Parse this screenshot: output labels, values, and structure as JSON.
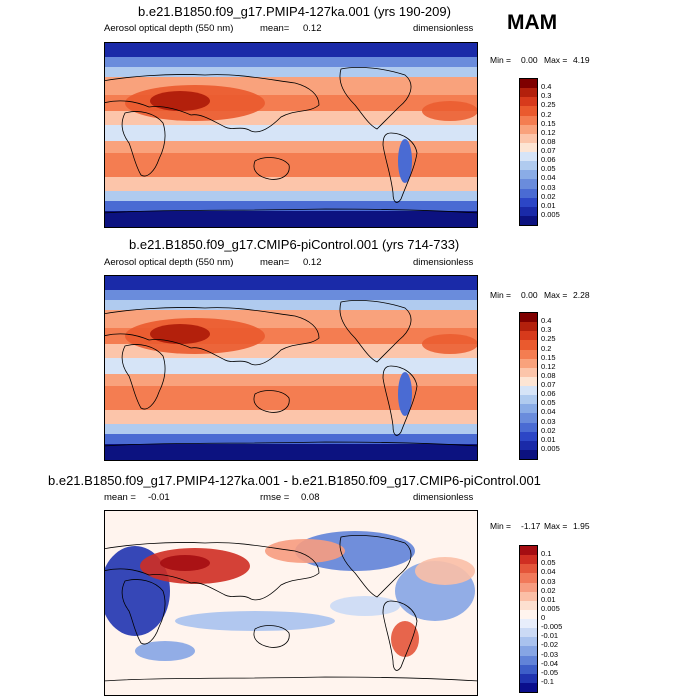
{
  "season": "MAM",
  "chart_data": [
    {
      "type": "heatmap",
      "title": "b.e21.B1850.f09_g17.PMIP4-127ka.001 (yrs 190-209)",
      "variable": "Aerosol optical depth (550 nm)",
      "mean_label": "mean=",
      "mean": "0.12",
      "units": "dimensionless",
      "min_label": "Min =",
      "min": "0.00",
      "max_label": "Max =",
      "max": "4.19",
      "levels": [
        "0.4",
        "0.3",
        "0.25",
        "0.2",
        "0.15",
        "0.12",
        "0.08",
        "0.07",
        "0.06",
        "0.05",
        "0.04",
        "0.03",
        "0.02",
        "0.01",
        "0.005"
      ],
      "colors": [
        "#7f0000",
        "#b3200c",
        "#d73a1c",
        "#ea5a2e",
        "#f47d51",
        "#f9a27c",
        "#fcc5aa",
        "#fde5d4",
        "#d6e4f7",
        "#b0cbef",
        "#8aace6",
        "#6a8cdc",
        "#4a6bd3",
        "#2c46c6",
        "#1a2aa8",
        "#0c1280"
      ]
    },
    {
      "type": "heatmap",
      "title": "b.e21.B1850.f09_g17.CMIP6-piControl.001 (yrs 714-733)",
      "variable": "Aerosol optical depth (550 nm)",
      "mean_label": "mean=",
      "mean": "0.12",
      "units": "dimensionless",
      "min_label": "Min =",
      "min": "0.00",
      "max_label": "Max =",
      "max": "2.28",
      "levels": [
        "0.4",
        "0.3",
        "0.25",
        "0.2",
        "0.15",
        "0.12",
        "0.08",
        "0.07",
        "0.06",
        "0.05",
        "0.04",
        "0.03",
        "0.02",
        "0.01",
        "0.005"
      ],
      "colors": [
        "#7f0000",
        "#b3200c",
        "#d73a1c",
        "#ea5a2e",
        "#f47d51",
        "#f9a27c",
        "#fcc5aa",
        "#fde5d4",
        "#d6e4f7",
        "#b0cbef",
        "#8aace6",
        "#6a8cdc",
        "#4a6bd3",
        "#2c46c6",
        "#1a2aa8",
        "#0c1280"
      ]
    },
    {
      "type": "heatmap",
      "title": "b.e21.B1850.f09_g17.PMIP4-127ka.001 - b.e21.B1850.f09_g17.CMIP6-piControl.001",
      "mean_label": "mean =",
      "mean": "-0.01",
      "rmse_label": "rmse =",
      "rmse": "0.08",
      "units": "dimensionless",
      "min_label": "Min =",
      "min": "-1.17",
      "max_label": "Max =",
      "max": "1.95",
      "levels": [
        "0.1",
        "0.05",
        "0.04",
        "0.03",
        "0.02",
        "0.01",
        "0.005",
        "0",
        "-0.005",
        "-0.01",
        "-0.02",
        "-0.03",
        "-0.04",
        "-0.05",
        "-0.1"
      ],
      "colors": [
        "#a50d12",
        "#cf2e22",
        "#e4553a",
        "#f1795a",
        "#f79c80",
        "#fbbfa6",
        "#fde0d0",
        "#fff4ee",
        "#e8eefb",
        "#cbdaf5",
        "#a9c2ee",
        "#86a5e4",
        "#6183d8",
        "#3d5ec8",
        "#2034b0",
        "#0a0e8c"
      ]
    }
  ]
}
